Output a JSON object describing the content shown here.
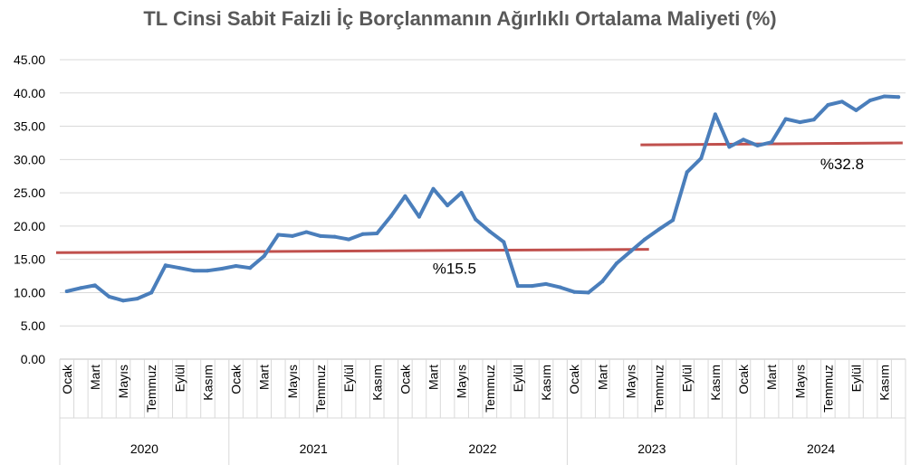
{
  "chart_data": {
    "type": "line",
    "title": "TL Cinsi Sabit Faizli İç Borçlanmanın Ağırlıklı Ortalama Maliyeti (%)",
    "xlabel": "",
    "ylabel": "",
    "ylim": [
      0,
      45
    ],
    "y_ticks": [
      "0.00",
      "5.00",
      "10.00",
      "15.00",
      "20.00",
      "25.00",
      "30.00",
      "35.00",
      "40.00",
      "45.00"
    ],
    "grid": true,
    "years": [
      "2020",
      "2021",
      "2022",
      "2023",
      "2024"
    ],
    "month_labels": [
      "Ocak",
      "",
      "Mart",
      "",
      "Mayıs",
      "",
      "Temmuz",
      "",
      "Eylül",
      "",
      "Kasım",
      ""
    ],
    "series": [
      {
        "color": "#4a7ebb",
        "values": [
          10.2,
          10.7,
          11.1,
          9.4,
          8.8,
          9.1,
          10.0,
          14.1,
          13.7,
          13.3,
          13.3,
          13.6,
          14.0,
          13.7,
          15.5,
          18.7,
          18.5,
          19.1,
          18.5,
          18.4,
          18.0,
          18.8,
          18.9,
          21.5,
          24.5,
          21.4,
          25.6,
          23.1,
          25.0,
          21.0,
          19.2,
          17.6,
          11.0,
          11.0,
          11.3,
          10.8,
          10.1,
          10.0,
          11.7,
          14.4,
          16.2,
          18.0,
          19.5,
          20.9,
          28.1,
          30.2,
          36.8,
          31.9,
          33.0,
          32.1,
          32.6,
          36.1,
          35.6,
          36.0,
          38.2,
          38.7,
          37.4,
          38.9,
          39.5,
          39.4
        ]
      }
    ],
    "averages": [
      {
        "label": "%15.5",
        "color": "#c0504d",
        "start_index": 0,
        "end_index": 41,
        "y_start": 16.0,
        "y_end": 16.5
      },
      {
        "label": "%32.8",
        "color": "#c0504d",
        "start_index": 41,
        "end_index": 59,
        "y_start": 32.2,
        "y_end": 32.5
      }
    ]
  }
}
